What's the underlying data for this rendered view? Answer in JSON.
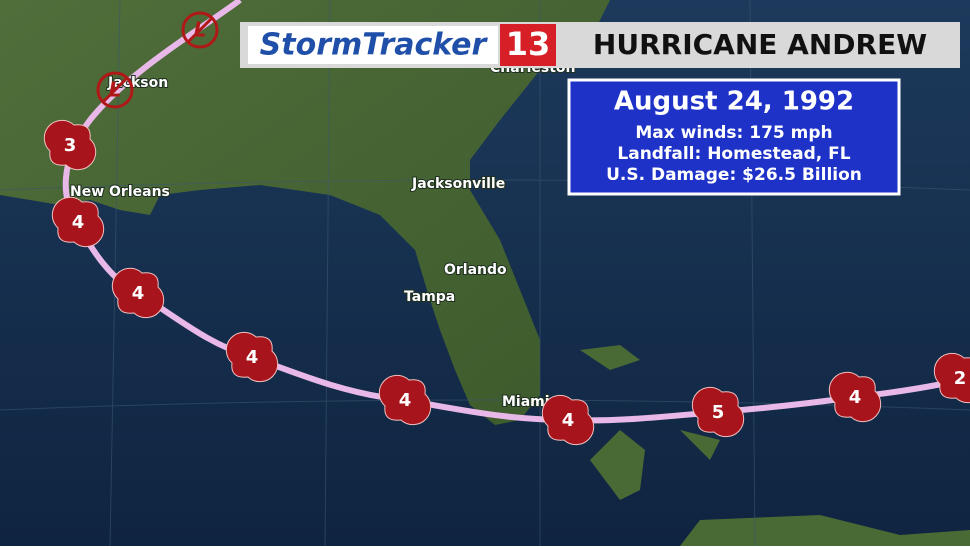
{
  "banner": {
    "brand": "StormTracker",
    "channel": "13",
    "title": "HURRICANE ANDREW"
  },
  "info": {
    "date": "August 24, 1992",
    "lines": [
      "Max winds: 175 mph",
      "Landfall: Homestead, FL",
      "U.S. Damage: $26.5 Billion"
    ]
  },
  "cities": [
    "Jackson",
    "Charleston",
    "New Orleans",
    "Jacksonville",
    "Orlando",
    "Tampa",
    "Miami"
  ],
  "track": {
    "markers": [
      "L",
      "L",
      "3",
      "4",
      "4",
      "4",
      "4",
      "4",
      "5",
      "4",
      "2"
    ]
  }
}
